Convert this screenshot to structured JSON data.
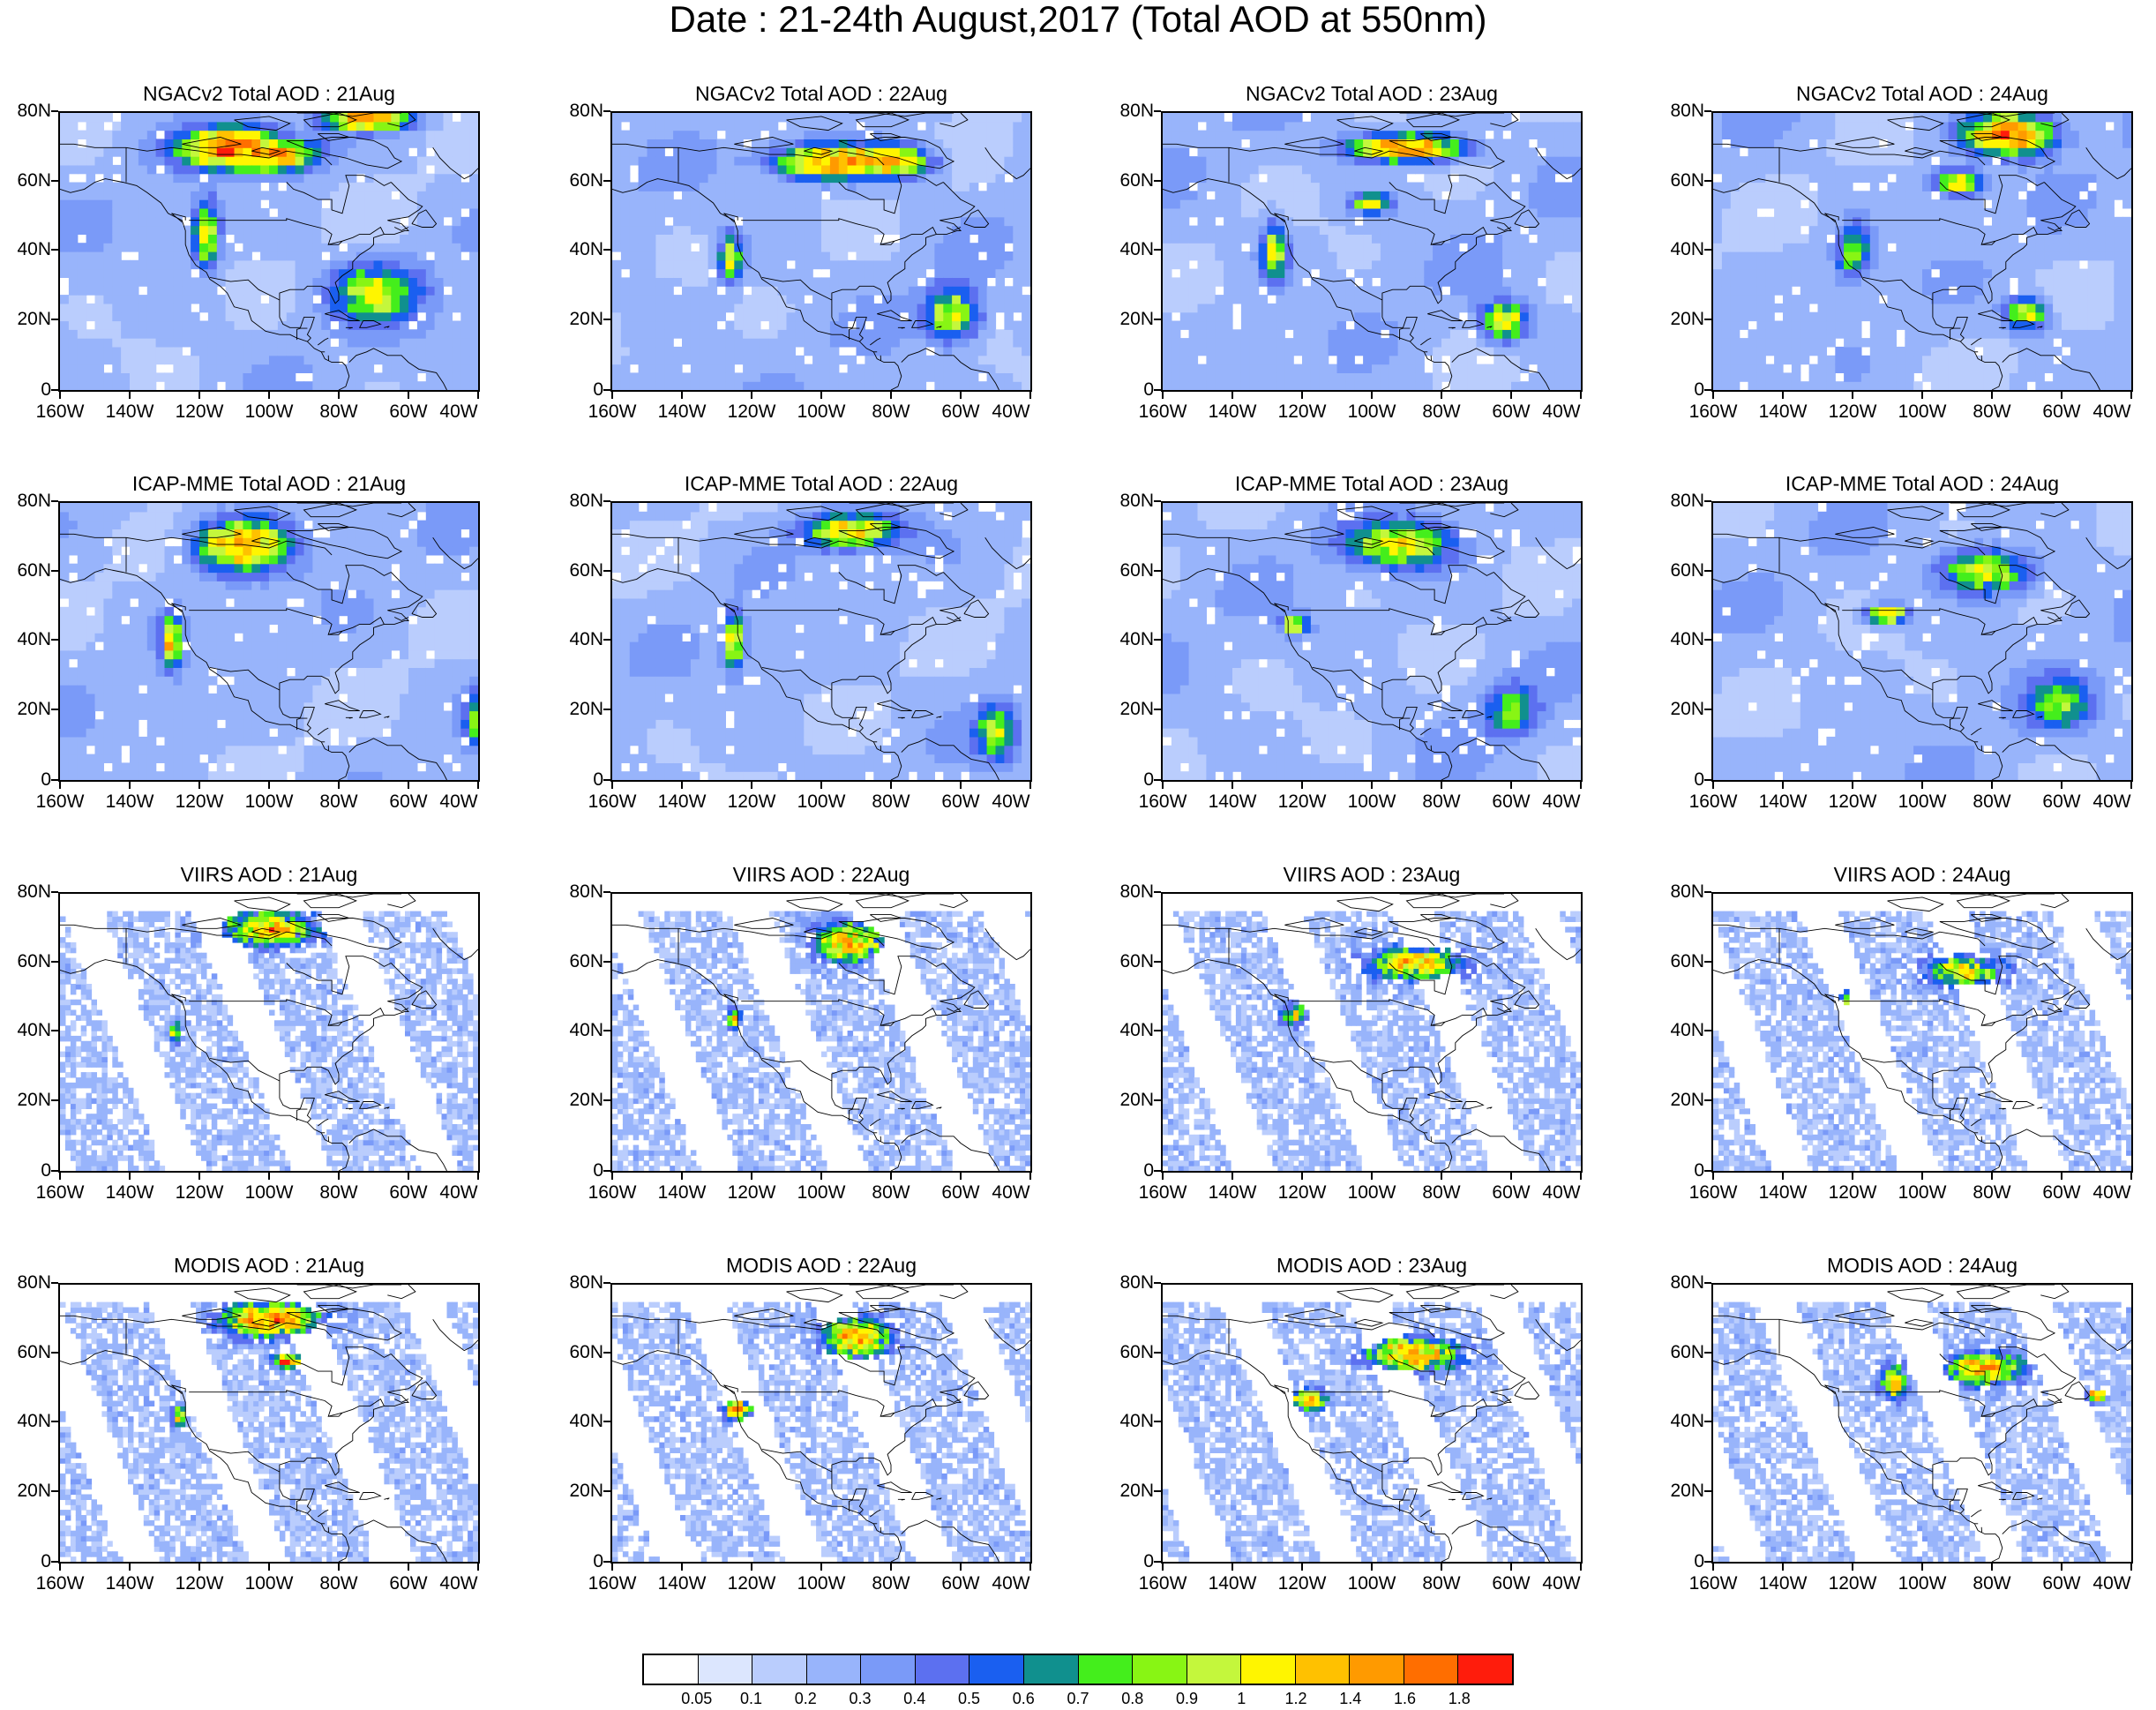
{
  "title": "Date : 21-24th August,2017 (Total AOD at 550nm)",
  "y_ticks": [
    "80N",
    "60N",
    "40N",
    "20N",
    "0"
  ],
  "x_ticks": [
    "160W",
    "140W",
    "120W",
    "100W",
    "80W",
    "60W",
    "40W"
  ],
  "rows": [
    {
      "product": "NGACv2 Total AOD",
      "style": "model",
      "titles": [
        "NGACv2 Total AOD : 21Aug",
        "NGACv2 Total AOD : 22Aug",
        "NGACv2 Total AOD : 23Aug",
        "NGACv2 Total AOD : 24Aug"
      ]
    },
    {
      "product": "ICAP-MME Total AOD",
      "style": "model",
      "titles": [
        "ICAP-MME Total AOD : 21Aug",
        "ICAP-MME Total AOD : 22Aug",
        "ICAP-MME Total AOD : 23Aug",
        "ICAP-MME Total AOD : 24Aug"
      ]
    },
    {
      "product": "VIIRS AOD",
      "style": "satellite",
      "titles": [
        "VIIRS AOD : 21Aug",
        "VIIRS AOD : 22Aug",
        "VIIRS AOD : 23Aug",
        "VIIRS AOD : 24Aug"
      ]
    },
    {
      "product": "MODIS AOD",
      "style": "satellite",
      "titles": [
        "MODIS AOD : 21Aug",
        "MODIS AOD : 22Aug",
        "MODIS AOD : 23Aug",
        "MODIS AOD : 24Aug"
      ]
    }
  ],
  "colorbar": {
    "labels": [
      "0.05",
      "0.1",
      "0.2",
      "0.3",
      "0.4",
      "0.5",
      "0.6",
      "0.7",
      "0.8",
      "0.9",
      "1",
      "1.2",
      "1.4",
      "1.6",
      "1.8"
    ],
    "colors": [
      "#ffffff",
      "#dce6fe",
      "#bacdfd",
      "#98b4fb",
      "#7a9af8",
      "#5c70f0",
      "#1a5ff0",
      "#10908e",
      "#44ee1c",
      "#88f514",
      "#c4f73c",
      "#fff500",
      "#ffc100",
      "#ff9a00",
      "#ff6e00",
      "#ff1c0c"
    ]
  },
  "map": {
    "lon_range": [
      -160,
      -40
    ],
    "lat_range": [
      0,
      80
    ],
    "coast_color": "#000000"
  }
}
